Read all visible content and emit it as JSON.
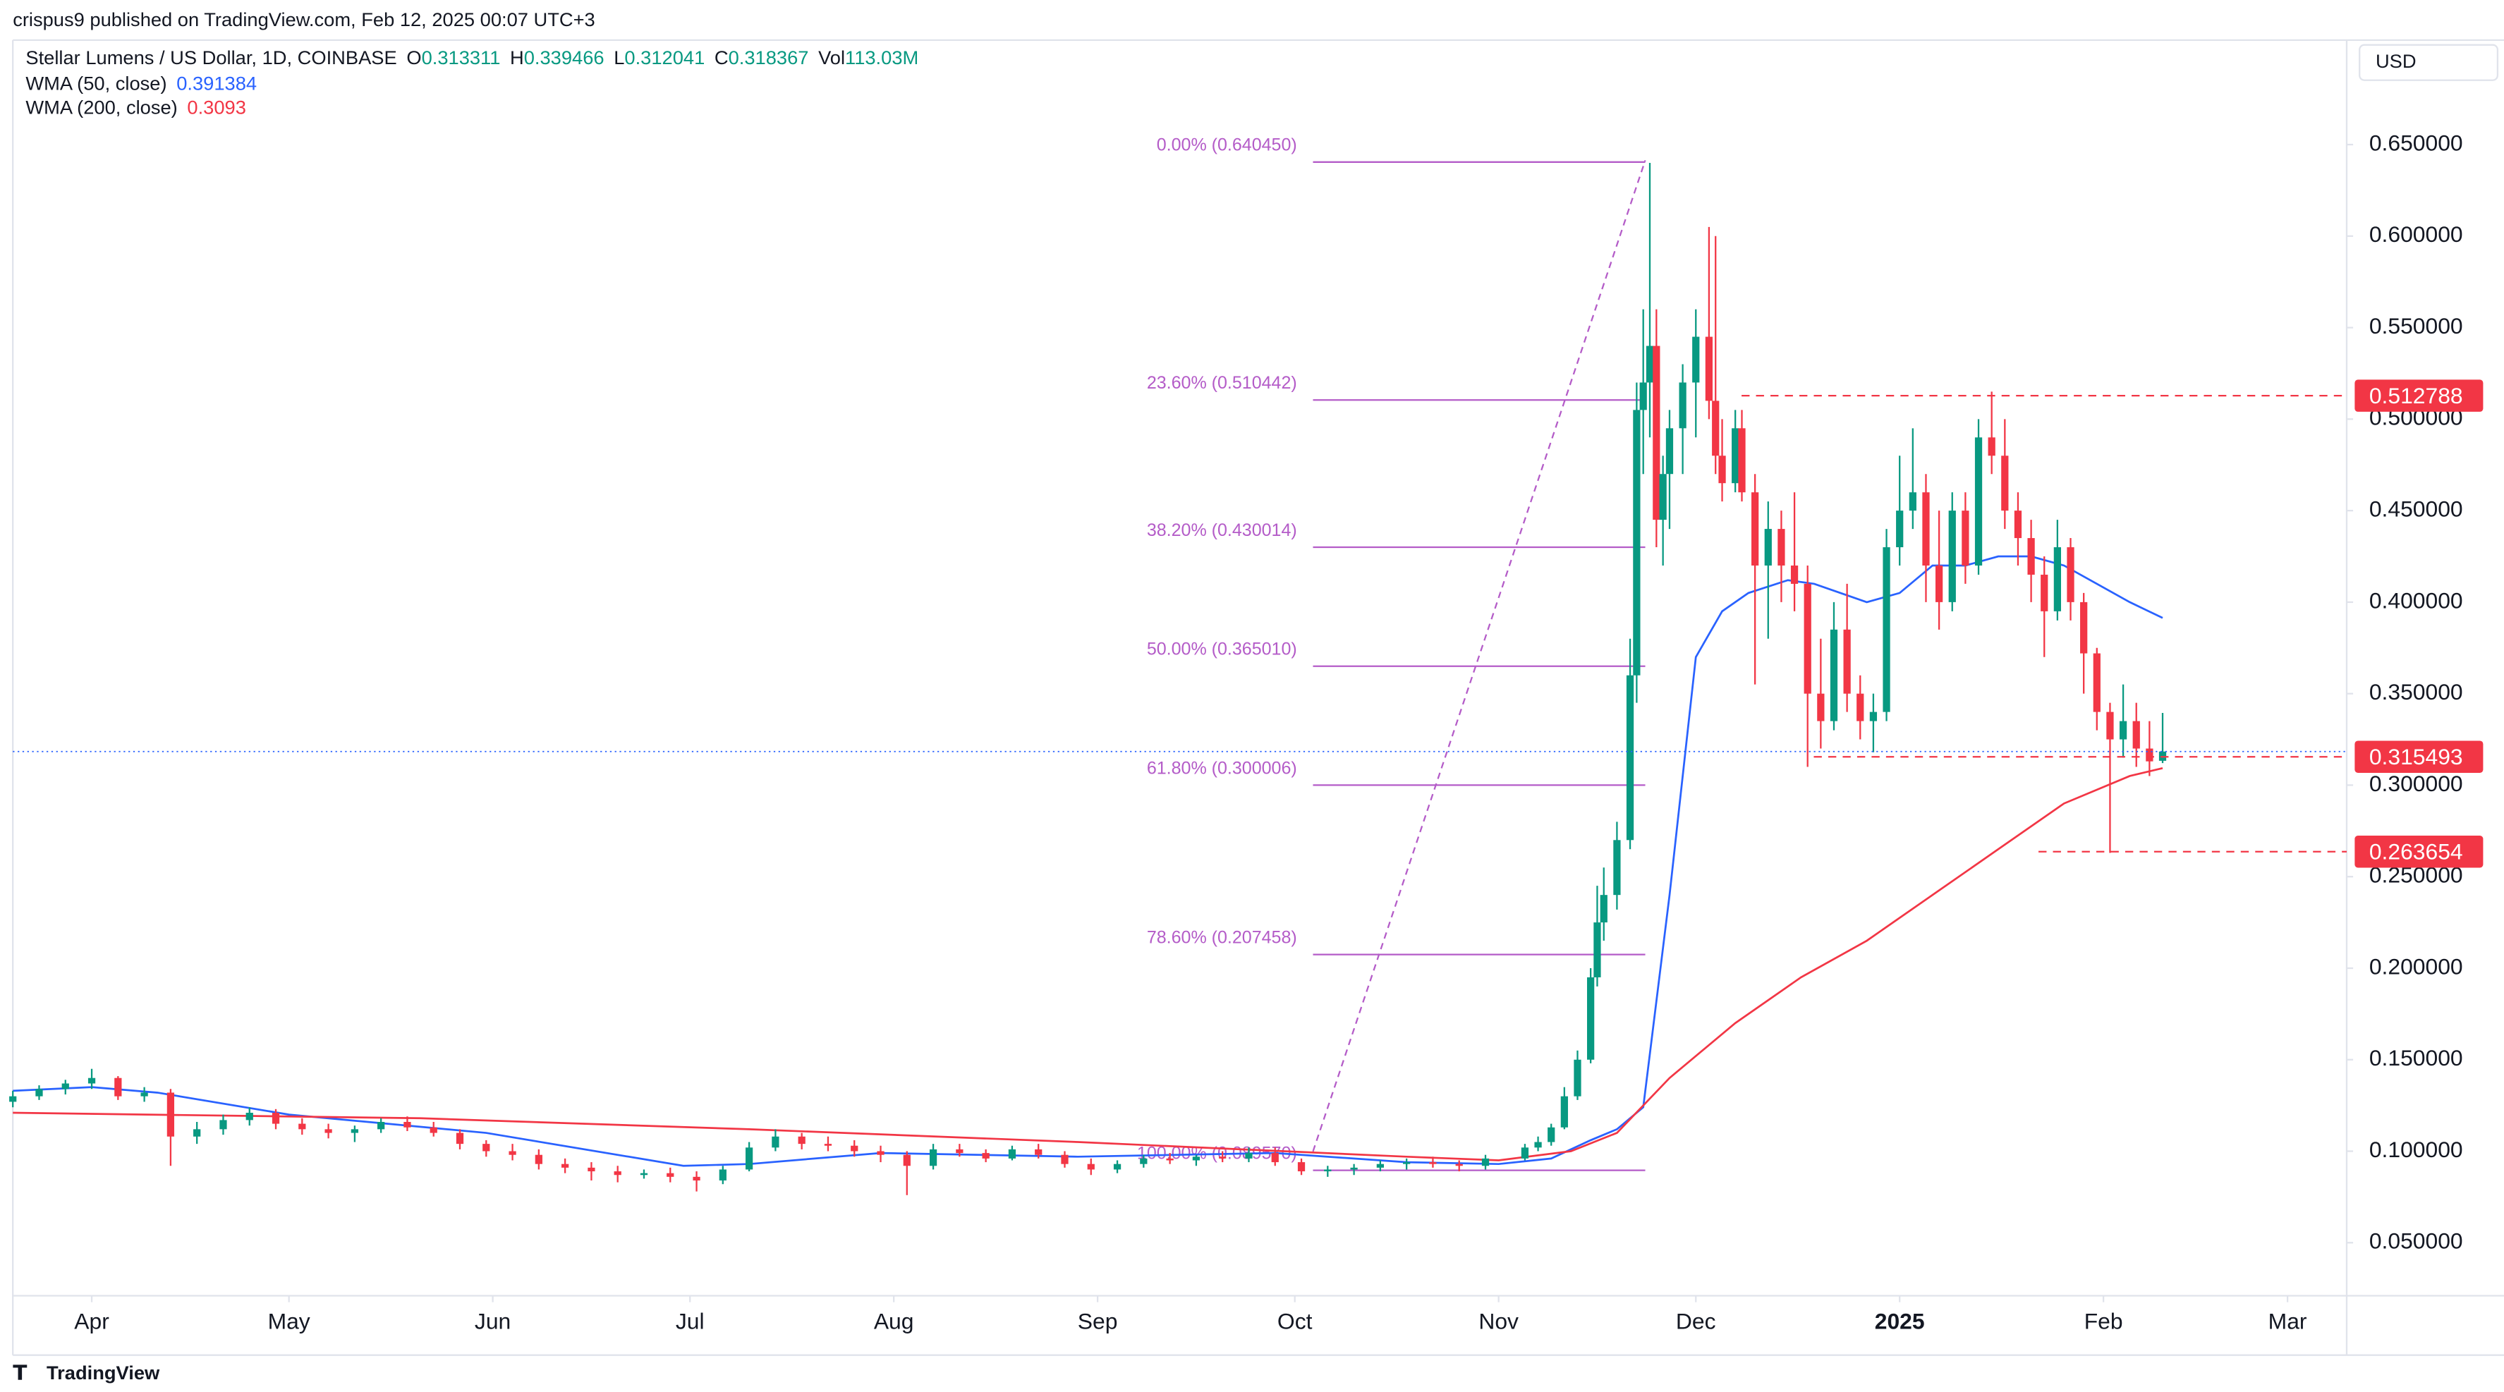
{
  "chart_data": {
    "type": "candlestick",
    "publisher": "crispus9 published on TradingView.com, Feb 12, 2025 00:07 UTC+3",
    "symbol": "Stellar Lumens / US Dollar, 1D, COINBASE",
    "ohlc_legend": [
      {
        "key": "O",
        "value": 0.313311
      },
      {
        "key": "H",
        "value": 0.339466
      },
      {
        "key": "L",
        "value": 0.312041
      },
      {
        "key": "C",
        "value": 0.318367
      }
    ],
    "volume": {
      "key": "Vol",
      "value": 113030000,
      "label": "113.03M"
    },
    "currency": "USD",
    "footer": "TradingView",
    "up_color": "#089981",
    "down_color": "#f23645",
    "x": [
      -12,
      -8,
      -4,
      0,
      4,
      8,
      12,
      16,
      20,
      24,
      28,
      32,
      36,
      40,
      44,
      48,
      52,
      56,
      60,
      64,
      68,
      72,
      76,
      80,
      84,
      88,
      92,
      96,
      100,
      104,
      108,
      112,
      116,
      120,
      124,
      128,
      132,
      136,
      140,
      144,
      148,
      152,
      156,
      160,
      164,
      168,
      172,
      176,
      180,
      184,
      188,
      192,
      196,
      200,
      204,
      208,
      212,
      218,
      220,
      222,
      224,
      226,
      228,
      229,
      230,
      232,
      234,
      235,
      236,
      237,
      238,
      239,
      240,
      242,
      244,
      246,
      247,
      248,
      250,
      251,
      253,
      255,
      257,
      259,
      261,
      263,
      265,
      267,
      269,
      271,
      273,
      275,
      277,
      279,
      281,
      283,
      285,
      287,
      289,
      291,
      293,
      295,
      297,
      299,
      301,
      303,
      305,
      307,
      309,
      311,
      313,
      315
    ],
    "open": [
      0.127,
      0.13,
      0.134,
      0.137,
      0.14,
      0.13,
      0.132,
      0.108,
      0.112,
      0.117,
      0.121,
      0.115,
      0.112,
      0.11,
      0.112,
      0.116,
      0.113,
      0.11,
      0.104,
      0.1,
      0.098,
      0.093,
      0.091,
      0.089,
      0.087,
      0.088,
      0.086,
      0.084,
      0.09,
      0.102,
      0.108,
      0.104,
      0.103,
      0.1,
      0.098,
      0.092,
      0.101,
      0.099,
      0.096,
      0.101,
      0.098,
      0.093,
      0.09,
      0.093,
      0.096,
      0.095,
      0.097,
      0.096,
      0.099,
      0.094,
      0.089,
      0.09,
      0.091,
      0.093,
      0.094,
      0.093,
      0.092,
      0.096,
      0.102,
      0.105,
      0.113,
      0.13,
      0.15,
      0.195,
      0.225,
      0.24,
      0.27,
      0.36,
      0.505,
      0.52,
      0.54,
      0.445,
      0.47,
      0.495,
      0.52,
      0.545,
      0.51,
      0.48,
      0.465,
      0.495,
      0.46,
      0.42,
      0.44,
      0.42,
      0.41,
      0.35,
      0.335,
      0.385,
      0.35,
      0.335,
      0.34,
      0.43,
      0.45,
      0.46,
      0.42,
      0.4,
      0.45,
      0.42,
      0.49,
      0.48,
      0.45,
      0.435,
      0.415,
      0.395,
      0.43,
      0.4,
      0.372,
      0.34,
      0.325,
      0.335,
      0.32,
      0.313311
    ],
    "high": [
      0.133,
      0.136,
      0.139,
      0.145,
      0.141,
      0.135,
      0.134,
      0.116,
      0.12,
      0.124,
      0.123,
      0.118,
      0.115,
      0.114,
      0.118,
      0.119,
      0.116,
      0.112,
      0.106,
      0.104,
      0.101,
      0.096,
      0.094,
      0.092,
      0.09,
      0.091,
      0.089,
      0.092,
      0.105,
      0.112,
      0.11,
      0.108,
      0.106,
      0.103,
      0.1,
      0.104,
      0.104,
      0.101,
      0.103,
      0.104,
      0.1,
      0.096,
      0.095,
      0.098,
      0.099,
      0.098,
      0.1,
      0.102,
      0.102,
      0.096,
      0.092,
      0.093,
      0.095,
      0.096,
      0.097,
      0.095,
      0.098,
      0.104,
      0.108,
      0.115,
      0.135,
      0.155,
      0.2,
      0.245,
      0.255,
      0.28,
      0.38,
      0.52,
      0.56,
      0.64,
      0.56,
      0.48,
      0.505,
      0.53,
      0.56,
      0.605,
      0.6,
      0.5,
      0.505,
      0.505,
      0.47,
      0.455,
      0.45,
      0.46,
      0.42,
      0.38,
      0.4,
      0.41,
      0.36,
      0.35,
      0.44,
      0.48,
      0.495,
      0.47,
      0.45,
      0.46,
      0.46,
      0.5,
      0.515,
      0.5,
      0.46,
      0.445,
      0.425,
      0.445,
      0.435,
      0.405,
      0.375,
      0.345,
      0.355,
      0.345,
      0.335,
      0.339466
    ],
    "low": [
      0.124,
      0.128,
      0.131,
      0.134,
      0.128,
      0.127,
      0.092,
      0.104,
      0.109,
      0.114,
      0.112,
      0.109,
      0.107,
      0.105,
      0.11,
      0.111,
      0.108,
      0.101,
      0.097,
      0.095,
      0.09,
      0.088,
      0.084,
      0.083,
      0.085,
      0.083,
      0.078,
      0.082,
      0.089,
      0.1,
      0.101,
      0.1,
      0.097,
      0.094,
      0.076,
      0.09,
      0.097,
      0.094,
      0.095,
      0.096,
      0.091,
      0.087,
      0.088,
      0.091,
      0.093,
      0.092,
      0.094,
      0.094,
      0.092,
      0.087,
      0.086,
      0.087,
      0.089,
      0.09,
      0.091,
      0.089,
      0.09,
      0.095,
      0.1,
      0.103,
      0.112,
      0.128,
      0.148,
      0.19,
      0.215,
      0.232,
      0.265,
      0.345,
      0.47,
      0.49,
      0.43,
      0.42,
      0.44,
      0.47,
      0.49,
      0.5,
      0.47,
      0.455,
      0.46,
      0.455,
      0.355,
      0.38,
      0.4,
      0.395,
      0.31,
      0.32,
      0.33,
      0.34,
      0.325,
      0.318,
      0.335,
      0.42,
      0.44,
      0.4,
      0.385,
      0.395,
      0.41,
      0.415,
      0.47,
      0.44,
      0.42,
      0.4,
      0.37,
      0.39,
      0.39,
      0.35,
      0.33,
      0.263,
      0.315,
      0.31,
      0.305,
      0.312041
    ],
    "close": [
      0.13,
      0.134,
      0.137,
      0.14,
      0.13,
      0.132,
      0.108,
      0.112,
      0.117,
      0.121,
      0.115,
      0.112,
      0.11,
      0.112,
      0.116,
      0.113,
      0.11,
      0.104,
      0.1,
      0.098,
      0.093,
      0.091,
      0.089,
      0.087,
      0.088,
      0.086,
      0.084,
      0.09,
      0.102,
      0.108,
      0.104,
      0.103,
      0.1,
      0.098,
      0.092,
      0.101,
      0.099,
      0.096,
      0.101,
      0.098,
      0.093,
      0.09,
      0.093,
      0.096,
      0.095,
      0.097,
      0.096,
      0.099,
      0.094,
      0.089,
      0.09,
      0.091,
      0.093,
      0.094,
      0.093,
      0.092,
      0.096,
      0.102,
      0.105,
      0.113,
      0.13,
      0.15,
      0.195,
      0.225,
      0.24,
      0.27,
      0.36,
      0.505,
      0.52,
      0.54,
      0.445,
      0.47,
      0.495,
      0.52,
      0.545,
      0.51,
      0.48,
      0.465,
      0.495,
      0.46,
      0.42,
      0.44,
      0.42,
      0.41,
      0.35,
      0.335,
      0.385,
      0.35,
      0.335,
      0.34,
      0.43,
      0.45,
      0.46,
      0.42,
      0.4,
      0.45,
      0.42,
      0.49,
      0.48,
      0.45,
      0.435,
      0.415,
      0.395,
      0.43,
      0.4,
      0.372,
      0.34,
      0.325,
      0.335,
      0.32,
      0.313,
      0.318367
    ],
    "indicators": [
      {
        "name": "WMA (50, close)",
        "last": 0.391384,
        "color": "#2962ff",
        "x": [
          -12,
          0,
          10,
          30,
          60,
          90,
          100,
          120,
          150,
          180,
          200,
          214,
          222,
          228,
          232,
          236,
          240,
          244,
          248,
          252,
          258,
          262,
          266,
          270,
          275,
          280,
          285,
          290,
          295,
          300,
          305,
          310,
          315
        ],
        "values": [
          0.133,
          0.135,
          0.132,
          0.12,
          0.11,
          0.092,
          0.093,
          0.099,
          0.097,
          0.099,
          0.094,
          0.093,
          0.096,
          0.106,
          0.112,
          0.124,
          0.24,
          0.37,
          0.395,
          0.405,
          0.412,
          0.41,
          0.405,
          0.4,
          0.405,
          0.42,
          0.42,
          0.425,
          0.425,
          0.42,
          0.41,
          0.4,
          0.391384
        ]
      },
      {
        "name": "WMA (200, close)",
        "last": 0.3093,
        "color": "#f23645",
        "x": [
          -12,
          50,
          100,
          150,
          200,
          214,
          225,
          232,
          240,
          250,
          260,
          270,
          280,
          290,
          300,
          310,
          315
        ],
        "values": [
          0.121,
          0.118,
          0.112,
          0.105,
          0.097,
          0.095,
          0.1,
          0.11,
          0.14,
          0.17,
          0.195,
          0.215,
          0.24,
          0.265,
          0.29,
          0.305,
          0.3093
        ]
      }
    ],
    "fib_levels": [
      {
        "label": "0.00% (0.640450)",
        "value": 0.64045
      },
      {
        "label": "23.60% (0.510442)",
        "value": 0.510442
      },
      {
        "label": "38.20% (0.430014)",
        "value": 0.430014
      },
      {
        "label": "50.00% (0.365010)",
        "value": 0.36501
      },
      {
        "label": "61.80% (0.300006)",
        "value": 0.300006
      },
      {
        "label": "78.60% (0.207458)",
        "value": 0.207458
      },
      {
        "label": "100.00% (0.089570)",
        "value": 0.08957
      }
    ],
    "price_tags": [
      0.512788,
      0.315493,
      0.263654
    ],
    "xlim": [
      -12,
      343
    ],
    "ylim": [
      0.021,
      0.729
    ],
    "xticks": [
      {
        "value": 0,
        "label": "Apr"
      },
      {
        "value": 30,
        "label": "May"
      },
      {
        "value": 61,
        "label": "Jun"
      },
      {
        "value": 91,
        "label": "Jul"
      },
      {
        "value": 122,
        "label": "Aug"
      },
      {
        "value": 153,
        "label": "Sep"
      },
      {
        "value": 183,
        "label": "Oct"
      },
      {
        "value": 214,
        "label": "Nov"
      },
      {
        "value": 244,
        "label": "Dec"
      },
      {
        "value": 275,
        "label": "2025"
      },
      {
        "value": 306,
        "label": "Feb"
      },
      {
        "value": 334,
        "label": "Mar"
      }
    ],
    "yticks": [
      {
        "value": 0.05,
        "label": "0.050000"
      },
      {
        "value": 0.1,
        "label": "0.100000"
      },
      {
        "value": 0.15,
        "label": "0.150000"
      },
      {
        "value": 0.2,
        "label": "0.200000"
      },
      {
        "value": 0.25,
        "label": "0.250000"
      },
      {
        "value": 0.3,
        "label": "0.300000"
      },
      {
        "value": 0.35,
        "label": "0.350000"
      },
      {
        "value": 0.4,
        "label": "0.400000"
      },
      {
        "value": 0.45,
        "label": "0.450000"
      },
      {
        "value": 0.5,
        "label": "0.500000"
      },
      {
        "value": 0.55,
        "label": "0.550000"
      },
      {
        "value": 0.6,
        "label": "0.600000"
      },
      {
        "value": 0.65,
        "label": "0.650000"
      }
    ]
  }
}
